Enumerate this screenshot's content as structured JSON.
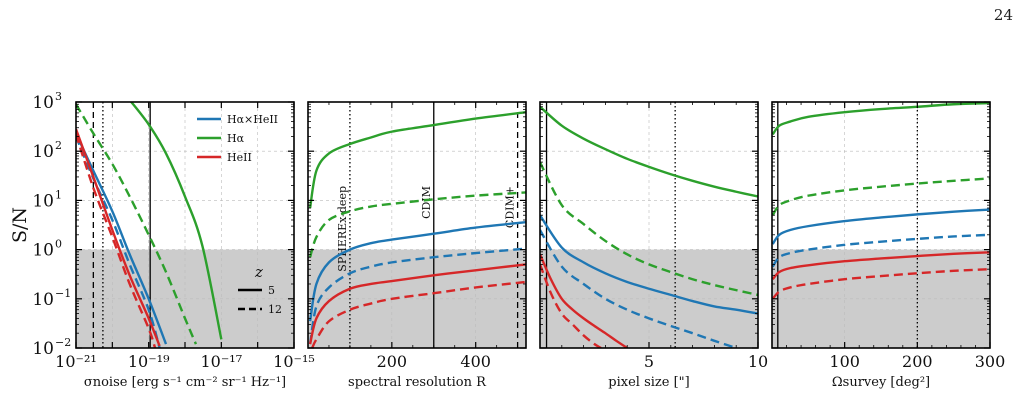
{
  "page_number": "24",
  "y_axis_label": "S/N",
  "y_ticks": [
    "10",
    "10",
    "10",
    "10",
    "10",
    "10"
  ],
  "y_tick_exponents": [
    "3",
    "2",
    "1",
    "0",
    "−1",
    "−2"
  ],
  "legend": {
    "entries": [
      "Hα×HeII",
      "Hα",
      "HeII"
    ],
    "z_title": "z",
    "z_entries": [
      "5",
      "12"
    ]
  },
  "colors": {
    "Halpha_x_HeII": "#1f77b4",
    "Halpha": "#2ca02c",
    "HeII": "#d62728",
    "shade": "#cccccc"
  },
  "chart_data": [
    {
      "type": "line",
      "xscale": "log",
      "yscale": "log",
      "xlabel": "σnoise [erg s⁻¹ cm⁻² sr⁻¹ Hz⁻¹]",
      "xlim": [
        1e-21,
        1e-15
      ],
      "ylim": [
        0.01,
        1000
      ],
      "x_tick_labels": [
        "10⁻²¹",
        "10⁻¹⁹",
        "10⁻¹⁷",
        "10⁻¹⁵"
      ],
      "shaded_below": 1,
      "vlines": [
        {
          "x": 3e-21,
          "style": "dashed"
        },
        {
          "x": 5.5e-21,
          "style": "dotted"
        },
        {
          "x": 1.1e-19,
          "style": "solid"
        }
      ],
      "series": [
        {
          "name": "Hα×HeII",
          "z": "5",
          "x": [
            1e-21,
            3e-21,
            1e-20,
            3e-20,
            1e-19,
            3e-19
          ],
          "y": [
            230,
            40,
            6,
            0.8,
            0.1,
            0.012
          ]
        },
        {
          "name": "Hα×HeII",
          "z": "12",
          "x": [
            1e-21,
            3e-21,
            1e-20,
            3e-20,
            1e-19,
            2e-19
          ],
          "y": [
            200,
            28,
            4,
            0.5,
            0.06,
            0.01
          ]
        },
        {
          "name": "Hα",
          "z": "5",
          "x": [
            3e-20,
            1e-19,
            3e-19,
            1e-18,
            3e-18,
            1e-17
          ],
          "y": [
            1100,
            350,
            90,
            12,
            1.2,
            0.015
          ]
        },
        {
          "name": "Hα",
          "z": "12",
          "x": [
            1e-21,
            3e-21,
            1e-20,
            3e-20,
            1e-19,
            3e-19,
            1e-18,
            2e-18
          ],
          "y": [
            900,
            230,
            55,
            12,
            2,
            0.35,
            0.04,
            0.012
          ]
        },
        {
          "name": "HeII",
          "z": "5",
          "x": [
            1e-21,
            3e-21,
            1e-20,
            3e-20,
            1e-19,
            2e-19
          ],
          "y": [
            280,
            30,
            2.5,
            0.3,
            0.04,
            0.011
          ]
        },
        {
          "name": "HeII",
          "z": "12",
          "x": [
            1e-21,
            3e-21,
            1e-20,
            3e-20,
            1e-19,
            1.5e-19
          ],
          "y": [
            220,
            18,
            1.8,
            0.2,
            0.025,
            0.01
          ]
        }
      ]
    },
    {
      "type": "line",
      "xscale": "linear",
      "yscale": "log",
      "xlabel": "spectral resolution R",
      "xlim": [
        0,
        520
      ],
      "ylim": [
        0.01,
        1000
      ],
      "x_tick_labels": [
        "200",
        "400"
      ],
      "x_ticks": [
        200,
        400
      ],
      "shaded_below": 1,
      "vlines": [
        {
          "x": 100,
          "style": "dotted",
          "label": "SPHEREx-deep"
        },
        {
          "x": 300,
          "style": "solid",
          "label": "CDIM"
        },
        {
          "x": 500,
          "style": "dashed",
          "label": "CDIM+"
        }
      ],
      "series": [
        {
          "name": "Hα",
          "z": "5",
          "x": [
            5,
            20,
            50,
            100,
            150,
            200,
            300,
            400,
            520
          ],
          "y": [
            7,
            40,
            90,
            140,
            190,
            250,
            340,
            460,
            620
          ]
        },
        {
          "name": "Hα",
          "z": "12",
          "x": [
            5,
            20,
            50,
            100,
            150,
            200,
            300,
            400,
            520
          ],
          "y": [
            0.7,
            1.8,
            4,
            6,
            7.5,
            8.5,
            10.5,
            12.5,
            14.5
          ]
        },
        {
          "name": "Hα×HeII",
          "z": "5",
          "x": [
            5,
            20,
            50,
            100,
            150,
            200,
            300,
            400,
            520
          ],
          "y": [
            0.035,
            0.2,
            0.55,
            1,
            1.35,
            1.6,
            2.1,
            2.8,
            3.6
          ]
        },
        {
          "name": "Hα×HeII",
          "z": "12",
          "x": [
            5,
            20,
            50,
            100,
            150,
            200,
            300,
            400,
            520
          ],
          "y": [
            0.012,
            0.07,
            0.17,
            0.33,
            0.45,
            0.55,
            0.7,
            0.85,
            1.05
          ]
        },
        {
          "name": "HeII",
          "z": "5",
          "x": [
            5,
            20,
            50,
            100,
            150,
            200,
            300,
            400,
            520
          ],
          "y": [
            0.012,
            0.04,
            0.09,
            0.16,
            0.2,
            0.23,
            0.3,
            0.38,
            0.5
          ]
        },
        {
          "name": "HeII",
          "z": "12",
          "x": [
            10,
            20,
            50,
            100,
            150,
            200,
            300,
            400,
            520
          ],
          "y": [
            0.01,
            0.015,
            0.035,
            0.06,
            0.08,
            0.1,
            0.13,
            0.17,
            0.22
          ]
        }
      ]
    },
    {
      "type": "line",
      "xscale": "linear",
      "yscale": "log",
      "xlabel": "pixel size [\"]",
      "xlim": [
        0,
        10
      ],
      "ylim": [
        0.01,
        1000
      ],
      "x_tick_labels": [
        "5",
        "10"
      ],
      "x_ticks": [
        5,
        10
      ],
      "shaded_below": 1,
      "vlines": [
        {
          "x": 0.3,
          "style": "solid"
        },
        {
          "x": 6.2,
          "style": "dotted"
        }
      ],
      "series": [
        {
          "name": "Hα",
          "z": "5",
          "x": [
            0,
            1,
            2,
            3,
            4,
            5,
            6,
            7,
            8,
            9,
            10
          ],
          "y": [
            800,
            330,
            180,
            110,
            70,
            48,
            34,
            25,
            19,
            15,
            12
          ]
        },
        {
          "name": "Hα",
          "z": "12",
          "x": [
            0,
            1,
            2,
            3,
            4,
            5,
            6,
            7,
            8,
            9,
            10
          ],
          "y": [
            60,
            8,
            3.3,
            1.5,
            0.8,
            0.5,
            0.35,
            0.25,
            0.19,
            0.15,
            0.12
          ]
        },
        {
          "name": "Hα×HeII",
          "z": "5",
          "x": [
            0,
            1,
            2,
            3,
            4,
            5,
            6,
            7,
            8,
            9,
            10
          ],
          "y": [
            5,
            1.1,
            0.55,
            0.33,
            0.22,
            0.16,
            0.12,
            0.09,
            0.07,
            0.06,
            0.05
          ]
        },
        {
          "name": "Hα×HeII",
          "z": "12",
          "x": [
            0,
            1,
            2,
            3,
            4,
            5,
            6,
            7,
            8,
            9
          ],
          "y": [
            2.5,
            0.45,
            0.2,
            0.1,
            0.06,
            0.04,
            0.028,
            0.02,
            0.014,
            0.01
          ]
        },
        {
          "name": "HeII",
          "z": "5",
          "x": [
            0,
            0.5,
            1,
            1.5,
            2,
            2.5,
            3,
            3.5,
            4
          ],
          "y": [
            0.8,
            0.25,
            0.1,
            0.06,
            0.04,
            0.028,
            0.02,
            0.014,
            0.01
          ]
        },
        {
          "name": "HeII",
          "z": "12",
          "x": [
            0,
            0.5,
            1,
            1.5,
            2,
            2.5,
            2.8
          ],
          "y": [
            0.5,
            0.13,
            0.05,
            0.03,
            0.018,
            0.012,
            0.01
          ]
        }
      ]
    },
    {
      "type": "line",
      "xscale": "linear",
      "yscale": "log",
      "xlabel": "Ωsurvey [deg²]",
      "xlim": [
        0,
        300
      ],
      "ylim": [
        0.01,
        1000
      ],
      "x_tick_labels": [
        "100",
        "200",
        "300"
      ],
      "x_ticks": [
        100,
        200,
        300
      ],
      "shaded_below": 1,
      "vlines": [
        {
          "x": 8,
          "style": "solid"
        },
        {
          "x": 200,
          "style": "dotted"
        }
      ],
      "series": [
        {
          "name": "Hα",
          "z": "5",
          "x": [
            1,
            10,
            25,
            50,
            100,
            150,
            200,
            250,
            300
          ],
          "y": [
            220,
            330,
            400,
            500,
            620,
            720,
            800,
            900,
            950
          ]
        },
        {
          "name": "Hα",
          "z": "12",
          "x": [
            1,
            10,
            25,
            50,
            100,
            150,
            200,
            250,
            300
          ],
          "y": [
            5,
            8,
            10,
            12.5,
            16,
            19,
            22,
            25,
            28
          ]
        },
        {
          "name": "Hα×HeII",
          "z": "5",
          "x": [
            1,
            10,
            25,
            50,
            100,
            150,
            200,
            250,
            300
          ],
          "y": [
            1.3,
            2,
            2.5,
            3,
            3.8,
            4.5,
            5.2,
            5.9,
            6.5
          ]
        },
        {
          "name": "Hα×HeII",
          "z": "12",
          "x": [
            1,
            10,
            25,
            50,
            100,
            150,
            200,
            250,
            300
          ],
          "y": [
            0.45,
            0.7,
            0.85,
            1,
            1.25,
            1.45,
            1.65,
            1.85,
            2
          ]
        },
        {
          "name": "HeII",
          "z": "5",
          "x": [
            1,
            10,
            25,
            50,
            100,
            150,
            200,
            250,
            300
          ],
          "y": [
            0.25,
            0.35,
            0.42,
            0.48,
            0.58,
            0.66,
            0.74,
            0.82,
            0.88
          ]
        },
        {
          "name": "HeII",
          "z": "12",
          "x": [
            1,
            10,
            25,
            50,
            100,
            150,
            200,
            250,
            300
          ],
          "y": [
            0.1,
            0.14,
            0.17,
            0.2,
            0.25,
            0.29,
            0.33,
            0.37,
            0.4
          ]
        }
      ]
    }
  ]
}
